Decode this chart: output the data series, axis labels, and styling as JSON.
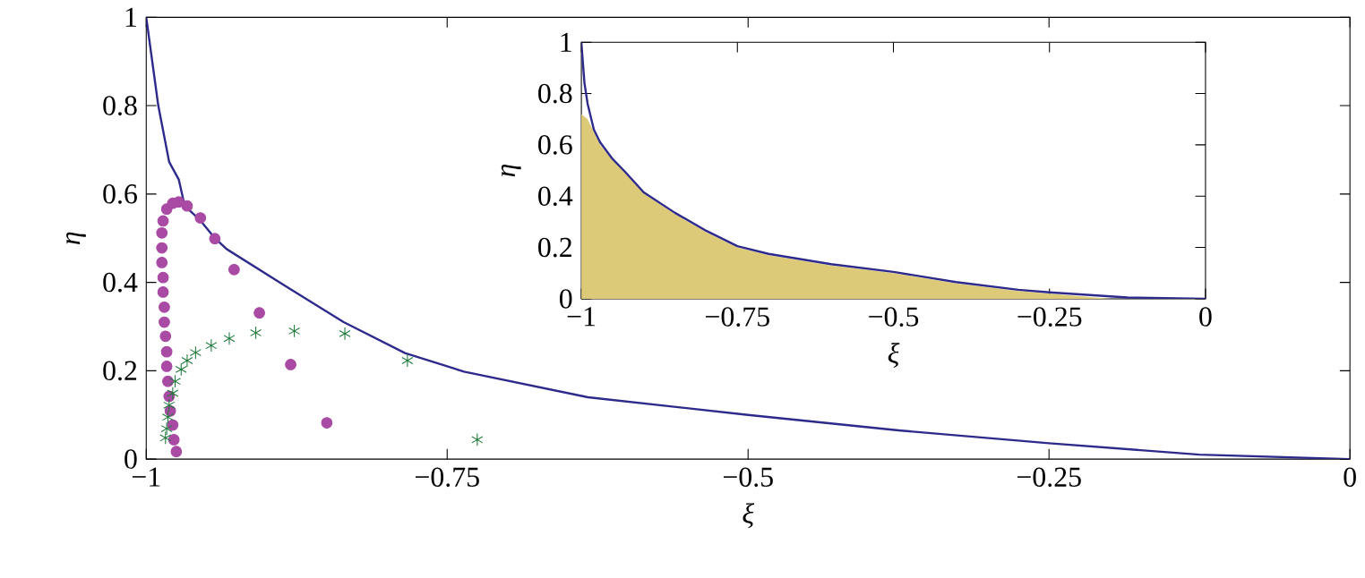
{
  "chart_data": [
    {
      "type": "scatter",
      "xlabel": "ξ",
      "ylabel": "η",
      "xlim": [
        -1,
        0
      ],
      "ylim": [
        0,
        1
      ],
      "xticks": [
        {
          "value": -1,
          "label": "−1"
        },
        {
          "value": -0.75,
          "label": "−0.75"
        },
        {
          "value": -0.5,
          "label": "−0.5"
        },
        {
          "value": -0.25,
          "label": "−0.25"
        },
        0
      ],
      "yticks": [
        0,
        0.2,
        0.4,
        0.6,
        0.8,
        1
      ],
      "series": [
        {
          "type": "line",
          "color": "#2e2a8c",
          "marker": "none",
          "x": [
            -1,
            -0.995,
            -0.99,
            -0.981,
            -0.973,
            -0.968,
            -0.955,
            -0.943,
            -0.933,
            -0.884,
            -0.836,
            -0.785,
            -0.736,
            -0.633,
            -0.5,
            -0.375,
            -0.25,
            -0.125,
            0
          ],
          "values": [
            1,
            0.9,
            0.8,
            0.673,
            0.633,
            0.573,
            0.54,
            0.5,
            0.475,
            0.391,
            0.31,
            0.24,
            0.198,
            0.14,
            0.1,
            0.065,
            0.036,
            0.01,
            0
          ]
        },
        {
          "color": "#a94aa4",
          "marker": "circle",
          "x": [
            -0.975,
            -0.977,
            -0.978,
            -0.98,
            -0.981,
            -0.982,
            -0.983,
            -0.983,
            -0.984,
            -0.985,
            -0.985,
            -0.986,
            -0.986,
            -0.987,
            -0.987,
            -0.987,
            -0.986,
            -0.983,
            -0.978,
            -0.973,
            -0.966,
            -0.955,
            -0.943,
            -0.927,
            -0.906,
            -0.88,
            -0.85
          ],
          "values": [
            0.017,
            0.044,
            0.077,
            0.109,
            0.142,
            0.176,
            0.21,
            0.243,
            0.278,
            0.31,
            0.344,
            0.378,
            0.411,
            0.445,
            0.478,
            0.512,
            0.539,
            0.566,
            0.579,
            0.582,
            0.573,
            0.546,
            0.499,
            0.429,
            0.331,
            0.214,
            0.082
          ]
        },
        {
          "color": "#1f7a3a",
          "marker": "cross",
          "x": [
            -0.984,
            -0.983,
            -0.982,
            -0.981,
            -0.978,
            -0.976,
            -0.971,
            -0.966,
            -0.959,
            -0.946,
            -0.931,
            -0.909,
            -0.877,
            -0.835,
            -0.783,
            -0.725
          ],
          "values": [
            0.048,
            0.069,
            0.095,
            0.122,
            0.149,
            0.176,
            0.203,
            0.223,
            0.241,
            0.257,
            0.273,
            0.286,
            0.29,
            0.284,
            0.223,
            0.044
          ]
        }
      ]
    },
    {
      "type": "line",
      "xlabel": "ξ",
      "ylabel": "η",
      "xlim": [
        -1,
        0
      ],
      "ylim": [
        0,
        1
      ],
      "xticks": [
        {
          "value": -1,
          "label": "−1"
        },
        {
          "value": -0.75,
          "label": "−0.75"
        },
        {
          "value": -0.5,
          "label": "−0.5"
        },
        {
          "value": -0.25,
          "label": "−0.25"
        },
        0
      ],
      "yticks": [
        0,
        0.2,
        0.4,
        0.6,
        0.8,
        1
      ],
      "series": [
        {
          "type": "area",
          "color": "#dcca78",
          "x": [
            -1,
            -0.99,
            -0.98,
            -0.97,
            -0.95,
            -0.93,
            -0.9,
            -0.85,
            -0.8,
            -0.75,
            -0.7,
            -0.6,
            -0.5,
            -0.4,
            -0.3,
            -0.25,
            -0.15
          ],
          "values": [
            0.72,
            0.7,
            0.65,
            0.6,
            0.54,
            0.49,
            0.41,
            0.33,
            0.26,
            0.2,
            0.17,
            0.13,
            0.1,
            0.06,
            0.03,
            0.02,
            0
          ]
        },
        {
          "color": "#2e2a8c",
          "marker": "none",
          "x": [
            -1,
            -0.995,
            -0.99,
            -0.98,
            -0.97,
            -0.95,
            -0.93,
            -0.9,
            -0.85,
            -0.8,
            -0.75,
            -0.7,
            -0.6,
            -0.5,
            -0.4,
            -0.3,
            -0.25,
            -0.125,
            0
          ],
          "values": [
            1,
            0.84,
            0.76,
            0.66,
            0.61,
            0.545,
            0.495,
            0.415,
            0.335,
            0.265,
            0.205,
            0.175,
            0.135,
            0.105,
            0.065,
            0.035,
            0.025,
            0.005,
            0
          ]
        }
      ]
    }
  ]
}
